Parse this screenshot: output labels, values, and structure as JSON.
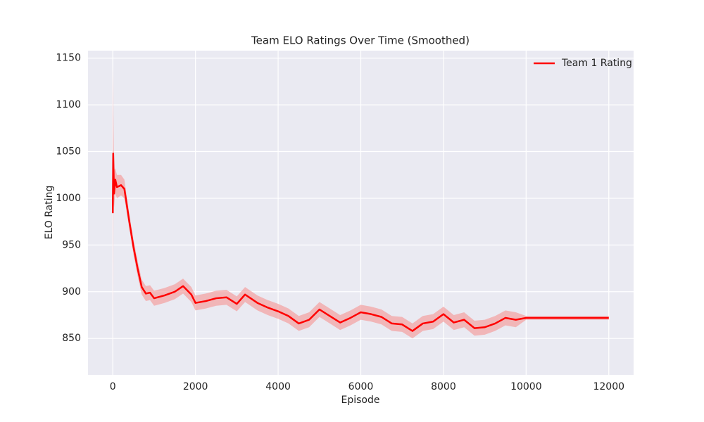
{
  "chart_data": {
    "type": "line",
    "title": "Team ELO Ratings Over Time (Smoothed)",
    "x_label": "Episode",
    "y_label": "ELO Rating",
    "x": [
      0,
      10,
      30,
      60,
      100,
      200,
      280,
      400,
      500,
      600,
      700,
      800,
      900,
      1000,
      1250,
      1500,
      1700,
      1900,
      2000,
      2250,
      2500,
      2750,
      3000,
      3200,
      3500,
      3750,
      4000,
      4250,
      4500,
      4750,
      5000,
      5250,
      5500,
      5750,
      6000,
      6250,
      6500,
      6750,
      7000,
      7250,
      7500,
      7750,
      8000,
      8250,
      8500,
      8750,
      9000,
      9250,
      9500,
      9750,
      10000,
      10500,
      11000,
      11500,
      12000
    ],
    "series": [
      {
        "name": "Team 1 Rating",
        "color": "#ff0000",
        "values": [
          984,
          1048,
          1005,
          1020,
          1012,
          1014,
          1010,
          975,
          948,
          925,
          905,
          898,
          899,
          893,
          896,
          900,
          906,
          897,
          888,
          890,
          893,
          894,
          887,
          897,
          888,
          883,
          879,
          874,
          866,
          870,
          881,
          874,
          867,
          872,
          878,
          876,
          873,
          866,
          865,
          858,
          866,
          868,
          876,
          867,
          870,
          861,
          862,
          866,
          872,
          870,
          872,
          872,
          872,
          872,
          872
        ],
        "band": {
          "color": "#f4a0a0",
          "lower": [
            825,
            1000,
            990,
            1005,
            1000,
            1003,
            1000,
            967,
            940,
            917,
            897,
            890,
            891,
            885,
            888,
            892,
            898,
            889,
            880,
            882,
            885,
            886,
            879,
            889,
            880,
            875,
            871,
            866,
            858,
            862,
            873,
            866,
            859,
            864,
            870,
            868,
            865,
            858,
            857,
            850,
            858,
            860,
            868,
            859,
            862,
            853,
            854,
            858,
            864,
            862,
            870,
            870,
            870,
            870,
            870
          ],
          "upper": [
            1142,
            1100,
            1030,
            1032,
            1025,
            1025,
            1020,
            983,
            956,
            933,
            913,
            906,
            907,
            901,
            904,
            908,
            914,
            905,
            896,
            898,
            901,
            902,
            895,
            905,
            896,
            891,
            887,
            882,
            874,
            878,
            889,
            882,
            875,
            880,
            886,
            884,
            881,
            874,
            873,
            866,
            874,
            876,
            884,
            875,
            878,
            869,
            870,
            874,
            880,
            878,
            874,
            874,
            874,
            874,
            874
          ]
        }
      }
    ],
    "xlim": [
      -600,
      12600
    ],
    "ylim": [
      811,
      1158
    ],
    "xticks": [
      0,
      2000,
      4000,
      6000,
      8000,
      10000,
      12000
    ],
    "yticks": [
      850,
      900,
      950,
      1000,
      1050,
      1100,
      1150
    ],
    "grid": true,
    "legend": "upper right"
  }
}
